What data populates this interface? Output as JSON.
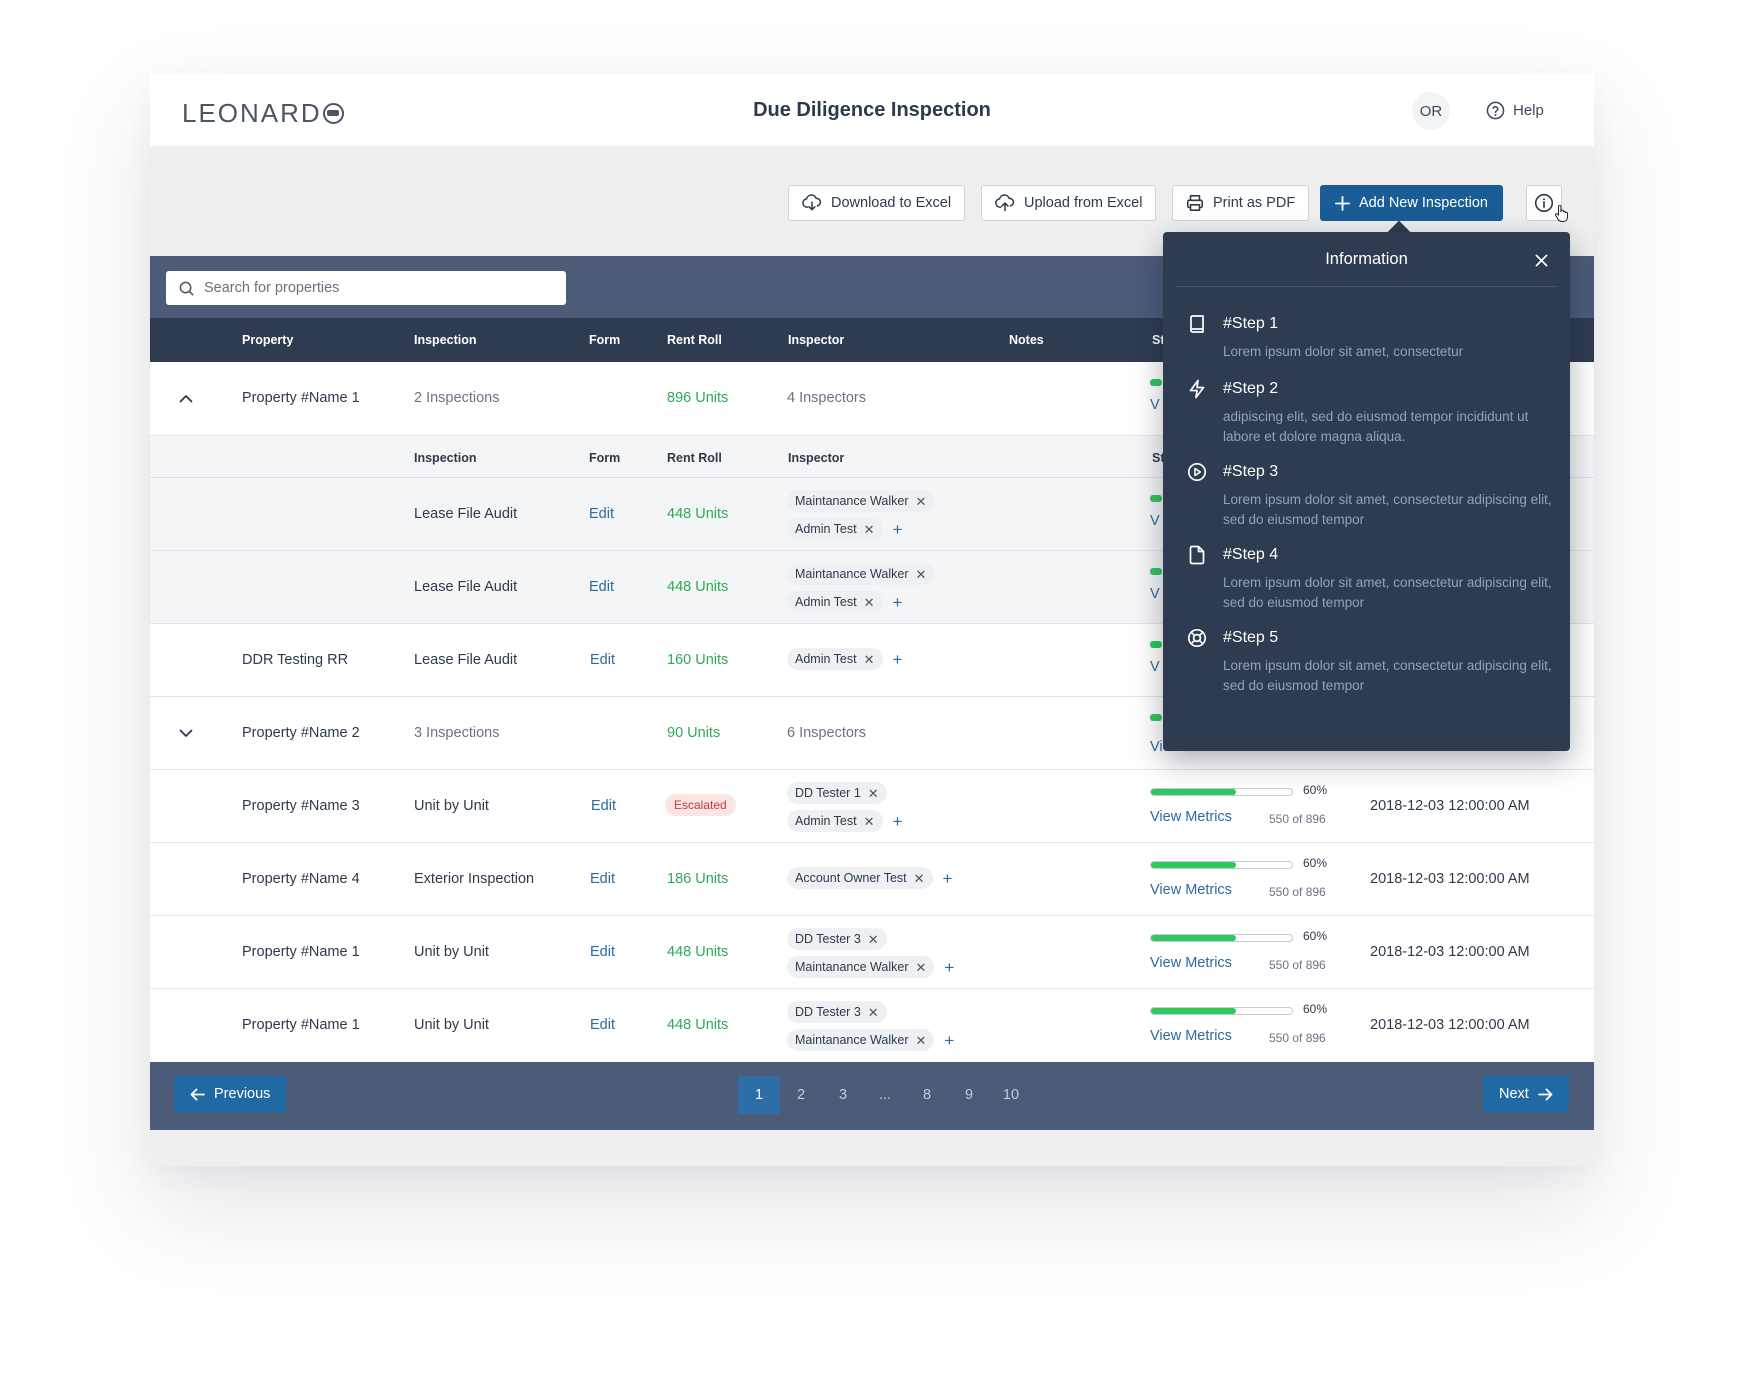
{
  "header": {
    "logo_text": "LEONARD",
    "title": "Due Diligence Inspection",
    "avatar_initials": "OR",
    "help_label": "Help"
  },
  "toolbar": {
    "download_label": "Download to Excel",
    "upload_label": "Upload from Excel",
    "print_label": "Print as PDF",
    "add_label": "Add New Inspection"
  },
  "search": {
    "placeholder": "Search for properties"
  },
  "table": {
    "headers": {
      "property": "Property",
      "inspection": "Inspection",
      "form": "Form",
      "rent_roll": "Rent Roll",
      "inspector": "Inspector",
      "notes": "Notes",
      "status_peek": "St"
    },
    "subheaders": {
      "inspection": "Inspection",
      "form": "Form",
      "rent_roll": "Rent Roll",
      "inspector": "Inspector",
      "status_peek": "St"
    },
    "rows": [
      {
        "property": "Property #Name 1",
        "inspection": "2 Inspections",
        "rent_roll": "896 Units",
        "inspector": "4 Inspectors",
        "peek": "V"
      },
      {
        "inspection": "Lease File Audit",
        "form": "Edit",
        "rent_roll": "448 Units",
        "tags": [
          "Maintanance Walker",
          "Admin Test"
        ],
        "peek": "V"
      },
      {
        "inspection": "Lease File Audit",
        "form": "Edit",
        "rent_roll": "448 Units",
        "tags": [
          "Maintanance Walker",
          "Admin Test"
        ],
        "peek": "V"
      },
      {
        "property": "DDR Testing RR",
        "inspection": "Lease File Audit",
        "form": "Edit",
        "rent_roll": "160 Units",
        "tags": [
          "Admin Test"
        ],
        "peek": "V"
      },
      {
        "property": "Property #Name 2",
        "inspection": "3 Inspections",
        "rent_roll": "90 Units",
        "inspector": "6 Inspectors",
        "peek": "View Metrics"
      },
      {
        "property": "Property #Name 3",
        "inspection": "Unit by Unit",
        "form": "Edit",
        "status_badge": "Escalated",
        "tags": [
          "DD Tester 1",
          "Admin Test"
        ],
        "progress": 0.6,
        "progress_label": "60%",
        "view_metrics": "View Metrics",
        "count": "550 of 896",
        "date": "2018-12-03  12:00:00 AM"
      },
      {
        "property": "Property #Name 4",
        "inspection": "Exterior Inspection",
        "form": "Edit",
        "rent_roll": "186 Units",
        "tags": [
          "Account Owner Test"
        ],
        "progress": 0.6,
        "progress_label": "60%",
        "view_metrics": "View Metrics",
        "count": "550 of 896",
        "date": "2018-12-03  12:00:00 AM"
      },
      {
        "property": "Property #Name 1",
        "inspection": "Unit by Unit",
        "form": "Edit",
        "rent_roll": "448 Units",
        "tags": [
          "DD Tester 3",
          "Maintanance Walker"
        ],
        "progress": 0.6,
        "progress_label": "60%",
        "view_metrics": "View Metrics",
        "count": "550 of 896",
        "date": "2018-12-03  12:00:00 AM"
      },
      {
        "property": "Property #Name 1",
        "inspection": "Unit by Unit",
        "form": "Edit",
        "rent_roll": "448 Units",
        "tags": [
          "DD Tester 3",
          "Maintanance Walker"
        ],
        "progress": 0.6,
        "progress_label": "60%",
        "view_metrics": "View Metrics",
        "count": "550 of 896",
        "date": "2018-12-03  12:00:00 AM"
      }
    ]
  },
  "pagination": {
    "previous_label": "Previous",
    "next_label": "Next",
    "pages": [
      "1",
      "2",
      "3",
      "...",
      "8",
      "9",
      "10"
    ],
    "active_page": "1"
  },
  "info_panel": {
    "title": "Information",
    "steps": [
      {
        "icon": "book-icon",
        "title": "#Step 1",
        "desc": "Lorem ipsum dolor sit amet, consectetur"
      },
      {
        "icon": "lightning-icon",
        "title": "#Step 2",
        "desc": "adipiscing elit, sed do eiusmod tempor incididunt ut labore et dolore magna aliqua."
      },
      {
        "icon": "play-circle-icon",
        "title": "#Step 3",
        "desc": "Lorem ipsum dolor sit amet, consectetur adipiscing elit, sed do eiusmod tempor"
      },
      {
        "icon": "file-icon",
        "title": "#Step 4",
        "desc": "Lorem ipsum dolor sit amet, consectetur adipiscing elit, sed do eiusmod tempor"
      },
      {
        "icon": "lifebuoy-icon",
        "title": "#Step 5",
        "desc": "Lorem ipsum dolor sit amet, consectetur adipiscing elit, sed do eiusmod tempor"
      }
    ]
  },
  "colors": {
    "primary": "#1a5c96",
    "header_dark": "#2e3b50",
    "band": "#4b5b78",
    "green": "#2eaa57",
    "progress": "#2fc85c",
    "link": "#2c6aa0",
    "escalated": "#c93a3a"
  }
}
